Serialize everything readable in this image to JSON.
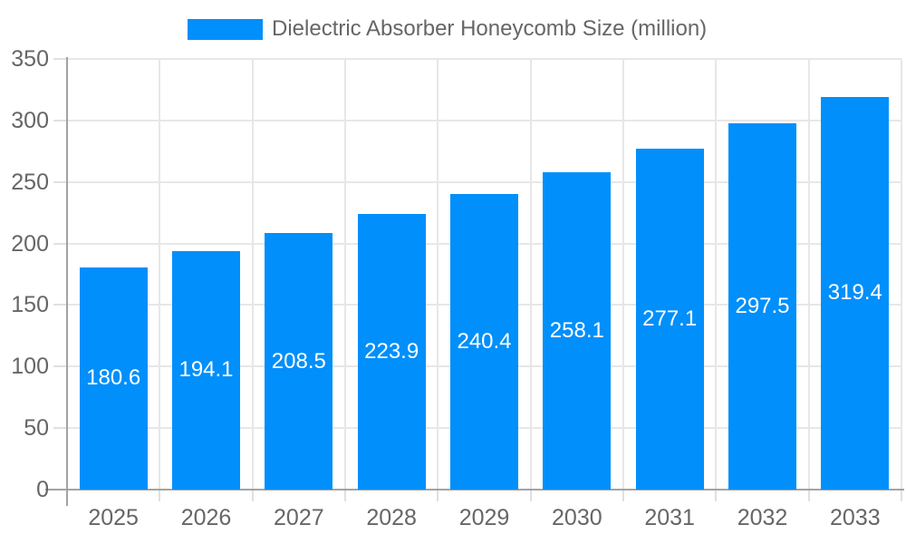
{
  "legend": {
    "label": "Dielectric Absorber Honeycomb Size (million)"
  },
  "colors": {
    "bar": "#008FFB",
    "grid": "#e7e7e7",
    "axis": "#a3a3a3",
    "tick": "#e0e0e0",
    "tick_label": "#666666",
    "value_label": "#ffffff",
    "background": "#ffffff"
  },
  "chart_data": {
    "type": "bar",
    "title": "Dielectric Absorber Honeycomb Size (million)",
    "legend_entries": [
      "Dielectric Absorber Honeycomb Size (million)"
    ],
    "legend_position": "top",
    "categories": [
      "2025",
      "2026",
      "2027",
      "2028",
      "2029",
      "2030",
      "2031",
      "2032",
      "2033"
    ],
    "series": [
      {
        "name": "Dielectric Absorber Honeycomb Size (million)",
        "values": [
          180.6,
          194.1,
          208.5,
          223.9,
          240.4,
          258.1,
          277.1,
          297.5,
          319.4
        ]
      }
    ],
    "xlabel": "",
    "ylabel": "",
    "ylim": [
      0,
      350
    ],
    "ytick_step": 50,
    "grid": true,
    "value_labels": "inside-center"
  }
}
